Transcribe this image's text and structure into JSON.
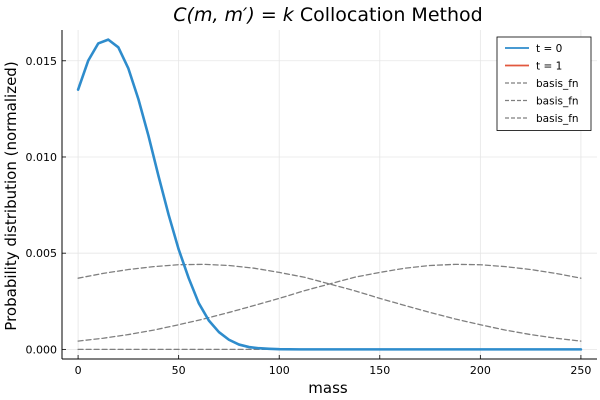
{
  "chart_data": {
    "type": "line",
    "title_prefix": "C(m, m′) = k",
    "title_suffix": " Collocation Method",
    "xlabel": "mass",
    "ylabel": "Probability distribution (normalized)",
    "xlim": [
      -8,
      258
    ],
    "ylim": [
      -0.0005,
      0.0166
    ],
    "x_ticks": [
      0,
      50,
      100,
      150,
      200,
      250
    ],
    "x_tick_labels": [
      "0",
      "50",
      "100",
      "150",
      "200",
      "250"
    ],
    "y_ticks": [
      0.0,
      0.005,
      0.01,
      0.015
    ],
    "y_tick_labels": [
      "0.000",
      "0.005",
      "0.010",
      "0.015"
    ],
    "grid": true,
    "legend_position": "top-right",
    "series": [
      {
        "name": "t = 0",
        "color": "#2e8ccc",
        "style": "solid",
        "x": [
          0,
          5,
          10,
          15,
          20,
          25,
          30,
          35,
          40,
          45,
          50,
          55,
          60,
          65,
          70,
          75,
          80,
          85,
          90,
          95,
          100,
          110,
          120,
          130,
          150,
          175,
          200,
          225,
          250
        ],
        "y": [
          0.0135,
          0.015,
          0.0159,
          0.0161,
          0.0157,
          0.0146,
          0.013,
          0.0111,
          0.009,
          0.007,
          0.0052,
          0.0037,
          0.0024,
          0.0015,
          0.0009,
          0.0005,
          0.00025,
          0.00012,
          6e-05,
          3e-05,
          1e-05,
          0.0,
          0.0,
          0.0,
          0.0,
          0.0,
          0.0,
          0.0,
          0.0
        ]
      },
      {
        "name": "t = 1",
        "color": "#e2583e",
        "style": "solid",
        "x": [],
        "y": []
      },
      {
        "name": "basis_fn",
        "color": "#7f7f7f",
        "style": "dashed",
        "x": [
          0,
          12.5,
          25,
          37.5,
          50,
          62.5,
          75,
          87.5,
          100,
          112.5,
          125,
          137.5,
          150,
          162.5,
          175,
          187.5,
          200,
          212.5,
          225,
          237.5,
          250
        ],
        "y": [
          0.0037,
          0.00395,
          0.00415,
          0.0043,
          0.0044,
          0.00442,
          0.00436,
          0.00422,
          0.004,
          0.00375,
          0.0034,
          0.00305,
          0.00265,
          0.00228,
          0.00192,
          0.00158,
          0.00128,
          0.001,
          0.00077,
          0.00058,
          0.00043
        ]
      },
      {
        "name": "basis_fn",
        "color": "#7f7f7f",
        "style": "dashed",
        "x": [
          0,
          12.5,
          25,
          37.5,
          50,
          62.5,
          75,
          87.5,
          100,
          112.5,
          125,
          137.5,
          150,
          162.5,
          175,
          187.5,
          200,
          212.5,
          225,
          237.5,
          250
        ],
        "y": [
          0.00043,
          0.00058,
          0.00077,
          0.001,
          0.00128,
          0.00158,
          0.00192,
          0.00228,
          0.00265,
          0.00305,
          0.0034,
          0.00375,
          0.004,
          0.00422,
          0.00436,
          0.00442,
          0.0044,
          0.0043,
          0.00415,
          0.00395,
          0.0037
        ]
      },
      {
        "name": "basis_fn",
        "color": "#7f7f7f",
        "style": "dashed",
        "x": [
          0,
          50,
          100,
          150,
          200,
          250
        ],
        "y": [
          0.0,
          0.0,
          0.0,
          0.0,
          0.0,
          0.0
        ]
      }
    ]
  }
}
